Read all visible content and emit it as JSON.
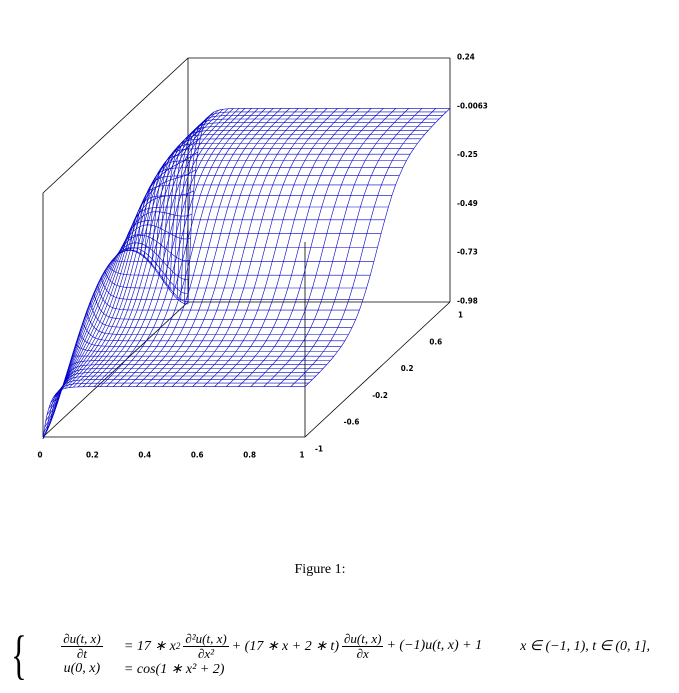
{
  "figure": {
    "z_ticks": [
      "0.24",
      "-0.0063",
      "-0.25",
      "-0.49",
      "-0.73",
      "-0.98"
    ],
    "t_ticks": [
      "0",
      "0.2",
      "0.4",
      "0.6",
      "0.8",
      "1"
    ],
    "x_ticks": [
      "-1",
      "-0.6",
      "-0.2",
      "0.2",
      "0.6",
      "1"
    ],
    "caption": "Figure 1:"
  },
  "equation": {
    "lhs1_num": "∂u(t, x)",
    "lhs1_den": "∂t",
    "rhs1_a": "= 17 ∗ x",
    "rhs1_a_sup": "2",
    "rhs1_f1_num": "∂²u(t, x)",
    "rhs1_f1_den": "∂x²",
    "rhs1_b": "+ (17 ∗ x + 2 ∗ t)",
    "rhs1_f2_num": "∂u(t, x)",
    "rhs1_f2_den": "∂x",
    "rhs1_c": "+ (−1)u(t, x) + 1",
    "domain": "x ∈ (−1, 1),  t ∈ (0, 1],",
    "lhs2": "u(0, x)",
    "rhs2": "= cos(1 ∗ x² + 2)"
  }
}
